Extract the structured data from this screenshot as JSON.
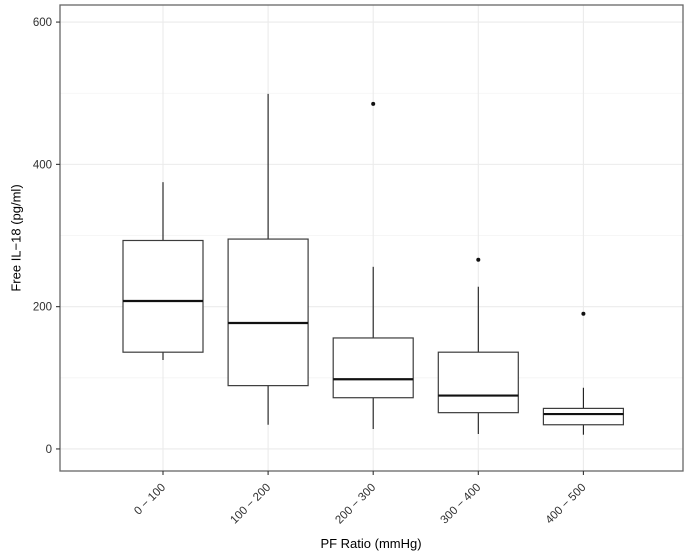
{
  "figure": {
    "xlabel": "PF Ratio (mmHg)",
    "ylabel": "Free IL−18 (pg/ml)"
  },
  "chart_data": {
    "type": "box",
    "title": "",
    "xlabel": "PF Ratio (mmHg)",
    "ylabel": "Free IL−18 (pg/ml)",
    "categories": [
      "0 − 100",
      "100 − 200",
      "200 − 300",
      "300 − 400",
      "400 − 500"
    ],
    "boxes": [
      {
        "category": "0 − 100",
        "whisker_low": 125,
        "q1": 136,
        "median": 208,
        "q3": 293,
        "whisker_high": 375,
        "outliers": []
      },
      {
        "category": "100 − 200",
        "whisker_low": 34,
        "q1": 89,
        "median": 177,
        "q3": 295,
        "whisker_high": 499,
        "outliers": []
      },
      {
        "category": "200 − 300",
        "whisker_low": 28,
        "q1": 72,
        "median": 98,
        "q3": 156,
        "whisker_high": 256,
        "outliers": [
          485
        ]
      },
      {
        "category": "300 − 400",
        "whisker_low": 21,
        "q1": 51,
        "median": 75,
        "q3": 136,
        "whisker_high": 228,
        "outliers": [
          266
        ]
      },
      {
        "category": "400 − 500",
        "whisker_low": 20,
        "q1": 34,
        "median": 49,
        "q3": 57,
        "whisker_high": 86,
        "outliers": [
          190
        ]
      }
    ],
    "y_ticks": [
      0,
      200,
      400,
      600
    ],
    "y_minor_gridlines": [
      100,
      300,
      500
    ],
    "ylim": [
      -31,
      624
    ],
    "grid": "major and minor horizontal, major vertical at category centers",
    "legend": "none",
    "colors": {
      "panel_bg": "#ffffff",
      "panel_border": "#666666",
      "grid_major": "#ebebeb",
      "grid_minor": "#f3f3f3",
      "box_border": "#3c3c3c",
      "box_fill": "#ffffff",
      "median": "#111111",
      "whisker": "#1a1a1a",
      "outlier": "#111111",
      "tick_mark": "#333333",
      "tick_label": "#303030",
      "axis_title": "#000000"
    }
  }
}
